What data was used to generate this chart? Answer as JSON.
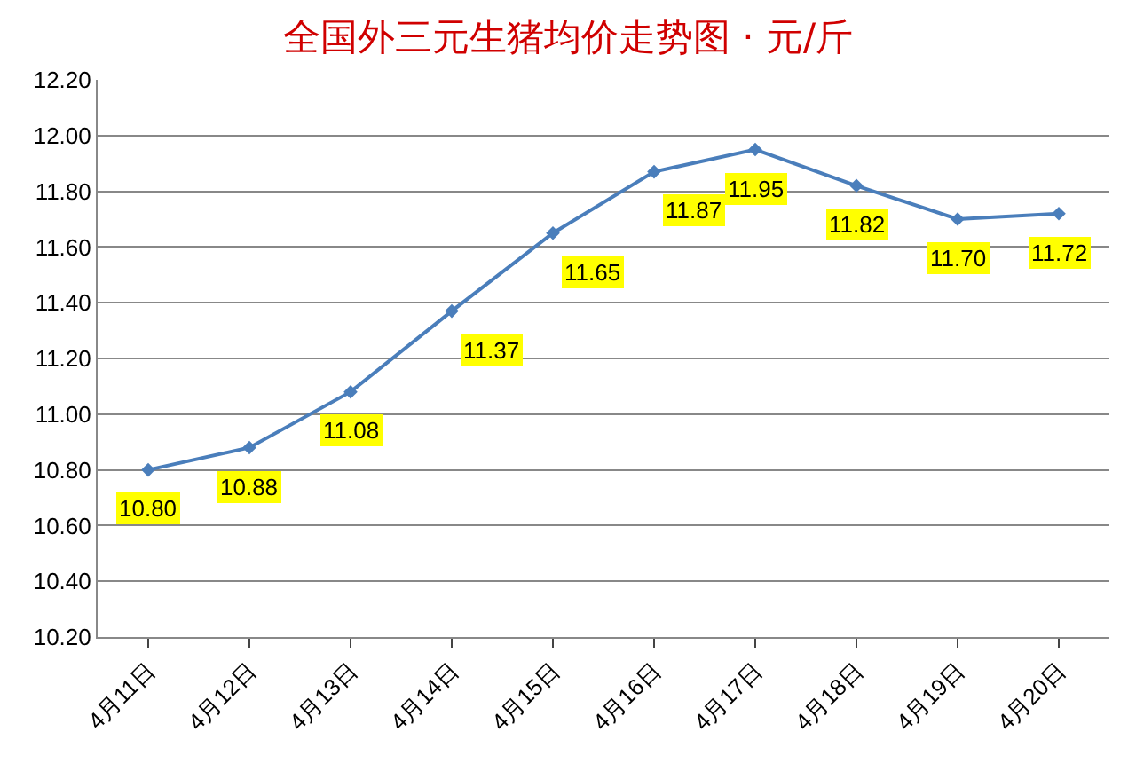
{
  "chart_data": {
    "type": "line",
    "title": "全国外三元生猪均价走势图 · 元/斤",
    "categories": [
      "4月11日",
      "4月12日",
      "4月13日",
      "4月14日",
      "4月15日",
      "4月16日",
      "4月17日",
      "4月18日",
      "4月19日",
      "4月20日"
    ],
    "series": [
      {
        "color": "#4a7ebb",
        "values": [
          10.8,
          10.88,
          11.08,
          11.37,
          11.65,
          11.87,
          11.95,
          11.82,
          11.7,
          11.72
        ],
        "value_labels": [
          "10.80",
          "10.88",
          "11.08",
          "11.37",
          "11.65",
          "11.87",
          "11.95",
          "11.82",
          "11.70",
          "11.72"
        ]
      }
    ],
    "ylim": [
      10.2,
      12.2
    ],
    "yticks": [
      {
        "value": 10.2,
        "label": "10.20"
      },
      {
        "value": 10.4,
        "label": "10.40"
      },
      {
        "value": 10.6,
        "label": "10.60"
      },
      {
        "value": 10.8,
        "label": "10.80"
      },
      {
        "value": 11.0,
        "label": "11.00"
      },
      {
        "value": 11.2,
        "label": "11.20"
      },
      {
        "value": 11.4,
        "label": "11.40"
      },
      {
        "value": 11.6,
        "label": "11.60"
      },
      {
        "value": 11.8,
        "label": "11.80"
      },
      {
        "value": 12.0,
        "label": "12.00"
      },
      {
        "value": 12.2,
        "label": "12.20"
      }
    ],
    "grid": "y",
    "marker": "diamond",
    "line_style": "solid",
    "legend": false
  }
}
